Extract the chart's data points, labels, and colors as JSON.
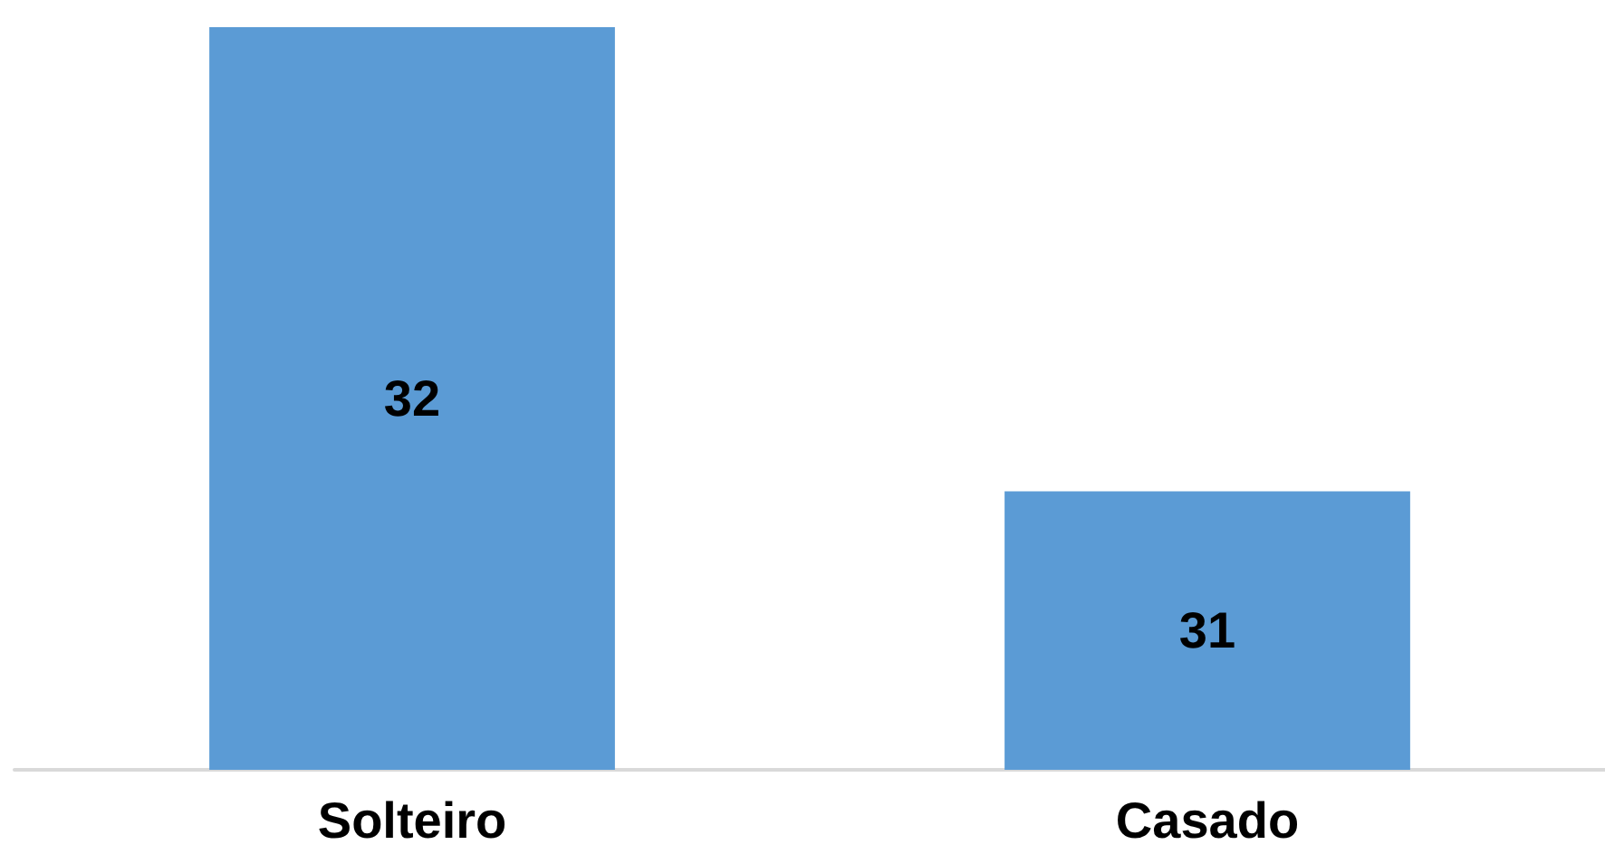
{
  "chart_data": {
    "type": "bar",
    "categories": [
      "Solteiro",
      "Casado"
    ],
    "values": [
      32,
      31
    ],
    "color": "#5b9bd5",
    "ylim": [
      30.4,
      32
    ],
    "data_labels": true
  }
}
